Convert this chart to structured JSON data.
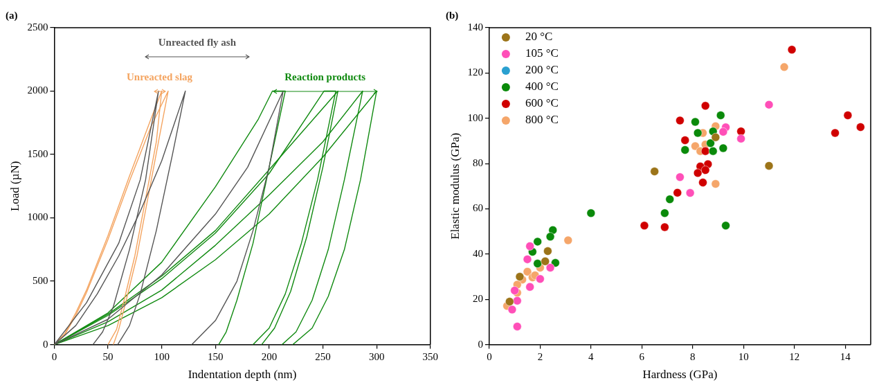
{
  "chart_data": [
    {
      "type": "line",
      "title": "(a)",
      "xlabel": "Indentation depth (nm)",
      "ylabel": "Load (µN)",
      "xlim": [
        0,
        350
      ],
      "xticks": [
        0,
        50,
        100,
        150,
        200,
        250,
        300,
        350
      ],
      "ylim": [
        0,
        2500
      ],
      "yticks": [
        0,
        500,
        1000,
        1500,
        2000,
        2500
      ],
      "grid": false,
      "legend": false,
      "marker": "none",
      "annotations": [
        "Unreacted fly ash",
        "Unreacted slag",
        "Reaction products"
      ],
      "series": [
        {
          "color": "#555555",
          "x": [
            0,
            20,
            40,
            60,
            80,
            100,
            122,
            110,
            95,
            80,
            70,
            59
          ],
          "values": [
            0,
            150,
            400,
            700,
            1050,
            1450,
            2000,
            1500,
            900,
            400,
            150,
            0
          ]
        },
        {
          "color": "#555555",
          "x": [
            0,
            30,
            60,
            80,
            97,
            85,
            70,
            55,
            45,
            36
          ],
          "values": [
            0,
            330,
            800,
            1300,
            2000,
            1300,
            750,
            300,
            100,
            0
          ]
        },
        {
          "color": "#555555",
          "x": [
            0,
            50,
            100,
            150,
            180,
            213,
            200,
            185,
            170,
            150,
            128
          ],
          "values": [
            0,
            200,
            550,
            1030,
            1400,
            2000,
            1400,
            900,
            500,
            190,
            0
          ]
        },
        {
          "color": "#f4a460",
          "x": [
            0,
            10,
            20,
            30,
            50,
            70,
            90,
            100,
            95,
            85,
            75,
            65,
            58,
            50
          ],
          "values": [
            0,
            90,
            250,
            430,
            860,
            1330,
            1780,
            2000,
            1600,
            1150,
            700,
            350,
            120,
            0
          ]
        },
        {
          "color": "#f4a460",
          "x": [
            0,
            10,
            20,
            30,
            50,
            70,
            90,
            106,
            97,
            87,
            77,
            67,
            60,
            55
          ],
          "values": [
            0,
            80,
            230,
            410,
            830,
            1290,
            1720,
            2000,
            1600,
            1150,
            700,
            350,
            120,
            0
          ]
        },
        {
          "color": "#108a10",
          "x": [
            0,
            50,
            100,
            150,
            190,
            203,
            215,
            200,
            185,
            170,
            160,
            153
          ],
          "values": [
            0,
            250,
            650,
            1245,
            1780,
            2000,
            2000,
            1400,
            800,
            350,
            100,
            0
          ]
        },
        {
          "color": "#108a10",
          "x": [
            0,
            50,
            100,
            150,
            200,
            251,
            262,
            245,
            230,
            215,
            200,
            185
          ],
          "values": [
            0,
            230,
            520,
            880,
            1350,
            2000,
            2000,
            1300,
            800,
            400,
            130,
            0
          ]
        },
        {
          "color": "#108a10",
          "x": [
            0,
            50,
            100,
            150,
            200,
            264,
            250,
            235,
            220,
            205,
            193
          ],
          "values": [
            0,
            240,
            540,
            900,
            1380,
            2000,
            1400,
            850,
            420,
            130,
            0
          ]
        },
        {
          "color": "#108a10",
          "x": [
            0,
            50,
            100,
            150,
            200,
            250,
            287,
            270,
            255,
            240,
            225,
            212
          ],
          "values": [
            0,
            180,
            430,
            784,
            1180,
            1600,
            2000,
            1300,
            750,
            350,
            100,
            0
          ]
        },
        {
          "color": "#108a10",
          "x": [
            0,
            50,
            100,
            150,
            200,
            250,
            300,
            285,
            270,
            255,
            240,
            222
          ],
          "values": [
            0,
            150,
            370,
            670,
            1030,
            1480,
            2000,
            1300,
            750,
            380,
            130,
            0
          ]
        }
      ]
    },
    {
      "type": "scatter",
      "title": "(b)",
      "xlabel": "Hardness (GPa)",
      "ylabel": "Elastic modulus (GPa)",
      "xlim": [
        0,
        15
      ],
      "xticks": [
        0,
        2,
        4,
        6,
        8,
        10,
        12,
        14
      ],
      "ylim": [
        0,
        140
      ],
      "yticks": [
        0,
        20,
        40,
        60,
        80,
        100,
        120,
        140
      ],
      "grid": false,
      "legend": "top left",
      "marker": "circle",
      "series": [
        {
          "name": "20 °C",
          "color": "#9c7419",
          "x": [
            6.5,
            11.0,
            8.9,
            2.3,
            2.2,
            1.2,
            0.8
          ],
          "values": [
            76.5,
            79,
            91.6,
            41.3,
            36.8,
            30,
            19
          ]
        },
        {
          "name": "105 °C",
          "color": "#ff4fb8",
          "x": [
            7.5,
            7.9,
            11.0,
            9.3,
            9.2,
            9.9,
            1.1,
            1.6,
            1.5,
            2.4,
            2.0,
            1.6,
            1.1,
            0.9,
            1.0
          ],
          "values": [
            74,
            67,
            106,
            96,
            94,
            91,
            8,
            43.5,
            37.7,
            34,
            29,
            25.5,
            19.4,
            15.5,
            23.9
          ]
        },
        {
          "name": "200 °C",
          "color": "#2aa0d0"
        },
        {
          "name": "400 °C",
          "color": "#0a8a0a",
          "x": [
            8.1,
            8.2,
            7.7,
            7.1,
            6.9,
            4.0,
            2.5,
            2.4,
            1.9,
            9.1,
            8.8,
            8.8,
            9.2,
            9.3,
            8.7,
            1.7,
            1.9,
            2.6
          ],
          "values": [
            98.4,
            93.5,
            86,
            64.2,
            58.1,
            58.1,
            50.6,
            47.7,
            45.5,
            101.3,
            94.2,
            85.5,
            86.8,
            52.6,
            89,
            41,
            35.8,
            36.1
          ]
        },
        {
          "name": "600 °C",
          "color": "#d00000",
          "x": [
            7.5,
            7.7,
            7.4,
            6.1,
            6.9,
            11.9,
            8.5,
            9.9,
            13.6,
            14.1,
            14.6,
            8.6,
            8.3,
            8.2,
            8.5,
            8.4,
            8.5
          ],
          "values": [
            99,
            90.3,
            67.1,
            52.6,
            51.9,
            130.3,
            105.5,
            94.2,
            93.5,
            101.3,
            96.1,
            79.7,
            78.7,
            75.8,
            77.1,
            71.6,
            85.5
          ]
        },
        {
          "name": "800 °C",
          "color": "#f5a66a",
          "x": [
            11.6,
            8.9,
            8.4,
            8.5,
            8.1,
            8.3,
            8.9,
            3.1,
            2.0,
            1.5,
            1.7,
            1.3,
            1.1,
            1.1,
            0.7,
            1.8
          ],
          "values": [
            122.6,
            96.5,
            93.5,
            88.4,
            87.7,
            85.5,
            71,
            46.1,
            34,
            32.2,
            29.7,
            28.7,
            26.5,
            22.9,
            17.1,
            30.6
          ]
        }
      ]
    }
  ]
}
